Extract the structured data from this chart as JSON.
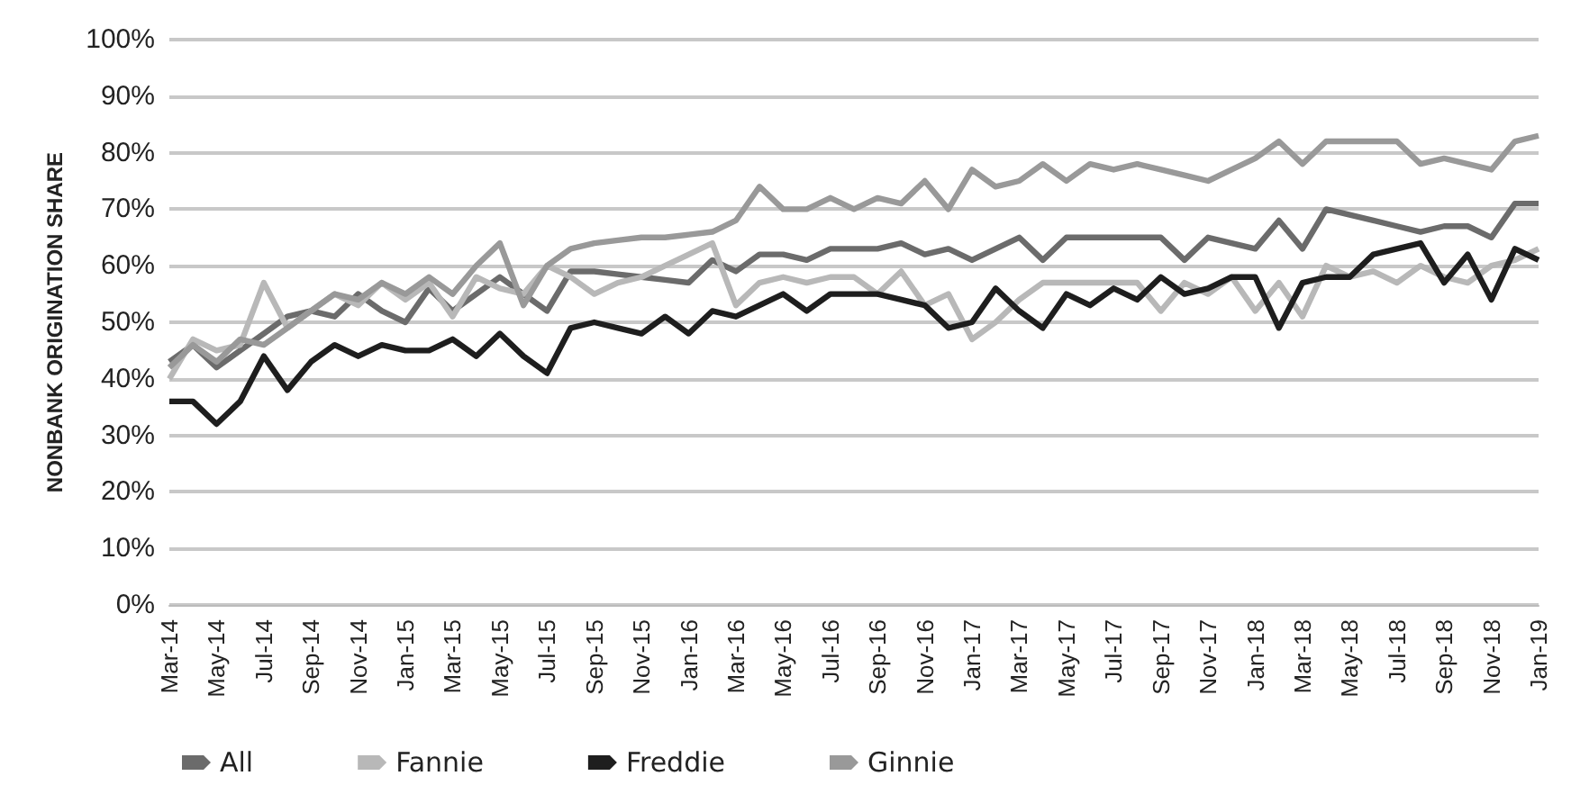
{
  "chart_data": {
    "type": "line",
    "ylabel": "NONBANK ORIGINATION SHARE",
    "categories": [
      "Mar-14",
      null,
      "May-14",
      null,
      "Jul-14",
      null,
      "Sep-14",
      null,
      "Nov-14",
      null,
      "Jan-15",
      null,
      "Mar-15",
      null,
      "May-15",
      null,
      "Jul-15",
      null,
      "Sep-15",
      null,
      "Nov-15",
      null,
      "Jan-16",
      null,
      "Mar-16",
      null,
      "May-16",
      null,
      "Jul-16",
      null,
      "Sep-16",
      null,
      "Nov-16",
      null,
      "Jan-17",
      null,
      "Mar-17",
      null,
      "May-17",
      null,
      "Jul-17",
      null,
      "Sep-17",
      null,
      "Nov-17",
      null,
      "Jan-18",
      null,
      "Mar-18",
      null,
      "May-18",
      null,
      "Jul-18",
      null,
      "Sep-18",
      null,
      "Nov-18",
      null,
      "Jan-19"
    ],
    "series": [
      {
        "name": "All",
        "color": "#6b6b6b",
        "values": [
          43,
          46,
          42,
          45,
          48,
          51,
          52,
          51,
          55,
          52,
          50,
          56,
          52,
          55,
          58,
          55,
          52,
          59,
          59,
          58.5,
          58,
          57.5,
          57,
          61,
          59,
          62,
          62,
          61,
          63,
          63,
          63,
          64,
          62,
          63,
          61,
          63,
          65,
          61,
          65,
          65,
          65,
          65,
          65,
          61,
          65,
          64,
          63,
          68,
          63,
          70,
          69,
          68,
          67,
          66,
          67,
          67,
          65,
          71,
          71
        ]
      },
      {
        "name": "Fannie",
        "color": "#b8b8b8",
        "values": [
          40,
          47,
          45,
          46,
          57,
          49,
          52,
          55,
          53,
          57,
          54,
          57,
          51,
          58,
          56,
          55,
          60,
          58,
          55,
          57,
          58,
          60,
          62,
          64,
          53,
          57,
          58,
          57,
          58,
          58,
          55,
          59,
          53,
          55,
          47,
          50,
          54,
          57,
          57,
          57,
          57,
          57,
          52,
          57,
          55,
          58,
          52,
          57,
          51,
          60,
          58,
          59,
          57,
          60,
          58,
          57,
          60,
          61,
          63
        ]
      },
      {
        "name": "Freddie",
        "color": "#1e1e1e",
        "values": [
          36,
          36,
          32,
          36,
          44,
          38,
          43,
          46,
          44,
          46,
          45,
          45,
          47,
          44,
          48,
          44,
          41,
          49,
          50,
          49,
          48,
          51,
          48,
          52,
          51,
          53,
          55,
          52,
          55,
          55,
          55,
          54,
          53,
          49,
          50,
          56,
          52,
          49,
          55,
          53,
          56,
          54,
          58,
          55,
          56,
          58,
          58,
          49,
          57,
          58,
          58,
          62,
          63,
          64,
          57,
          62,
          54,
          63,
          61
        ]
      },
      {
        "name": "Ginnie",
        "color": "#999999",
        "values": [
          42,
          46,
          43,
          47,
          46,
          49,
          52,
          55,
          54,
          57,
          55,
          58,
          55,
          60,
          64,
          53,
          60,
          63,
          64,
          64.5,
          65,
          65,
          65.5,
          66,
          68,
          74,
          70,
          70,
          72,
          70,
          72,
          71,
          75,
          70,
          77,
          74,
          75,
          78,
          75,
          78,
          77,
          78,
          77,
          76,
          75,
          77,
          79,
          82,
          78,
          82,
          82,
          82,
          82,
          78,
          79,
          78,
          77,
          82,
          83
        ]
      }
    ],
    "ylim": [
      0,
      100
    ],
    "yticks": [
      {
        "value": 0,
        "label": "0%"
      },
      {
        "value": 10,
        "label": "10%"
      },
      {
        "value": 20,
        "label": "20%"
      },
      {
        "value": 30,
        "label": "30%"
      },
      {
        "value": 40,
        "label": "40%"
      },
      {
        "value": 50,
        "label": "50%"
      },
      {
        "value": 60,
        "label": "60%"
      },
      {
        "value": 70,
        "label": "70%"
      },
      {
        "value": 80,
        "label": "80%"
      },
      {
        "value": 90,
        "label": "90%"
      },
      {
        "value": 100,
        "label": "100%"
      }
    ],
    "grid": "y",
    "legend": "bottom left",
    "marker": "none",
    "line_style": "solid"
  }
}
